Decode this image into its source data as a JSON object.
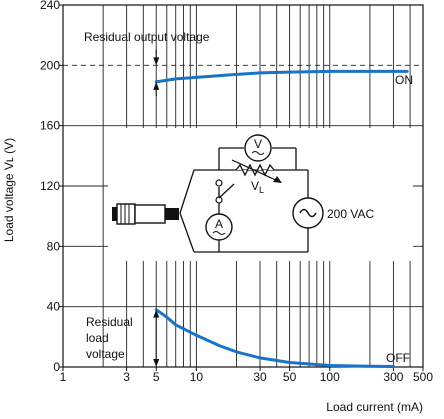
{
  "chart_data": {
    "type": "line",
    "title": "",
    "xlabel": "Load current (mA)",
    "ylabel": "Load voltage Vʟ (V)",
    "x_scale": "log",
    "xlim": [
      1,
      500
    ],
    "ylim": [
      0,
      240
    ],
    "x_ticks": [
      1,
      3,
      5,
      10,
      30,
      50,
      100,
      300,
      500
    ],
    "x_tick_labels": [
      "1",
      "3",
      "5",
      "10",
      "30",
      "50",
      "100",
      "300",
      "500"
    ],
    "y_ticks": [
      0,
      40,
      80,
      120,
      160,
      200,
      240
    ],
    "y_tick_labels": [
      "0",
      "40",
      "80",
      "120",
      "160",
      "200",
      "240"
    ],
    "grid": true,
    "color": "#1a73c4",
    "series": [
      {
        "label": "ON",
        "x": [
          5,
          7,
          10,
          20,
          30,
          50,
          100,
          200,
          300,
          380
        ],
        "y": [
          189,
          191,
          192,
          194,
          195,
          195.5,
          196,
          196,
          196,
          196
        ]
      },
      {
        "label": "OFF",
        "x": [
          5,
          6,
          7,
          10,
          15,
          20,
          30,
          50,
          100,
          200,
          300
        ],
        "y": [
          38,
          33,
          28,
          21,
          14,
          10,
          6,
          3,
          1,
          0.5,
          0.3
        ]
      }
    ],
    "reference_line": {
      "y": 200,
      "style": "dashed"
    },
    "annotations": {
      "residual_output_voltage": "Residual output voltage",
      "residual_load_voltage": [
        "Residual",
        "load",
        "voltage"
      ],
      "on_label": "ON",
      "off_label": "OFF"
    },
    "inset_circuit": {
      "voltmeter": "V",
      "ammeter": "A",
      "load_label": "V",
      "load_subscript": "L",
      "source_label": "200 VAC"
    }
  }
}
